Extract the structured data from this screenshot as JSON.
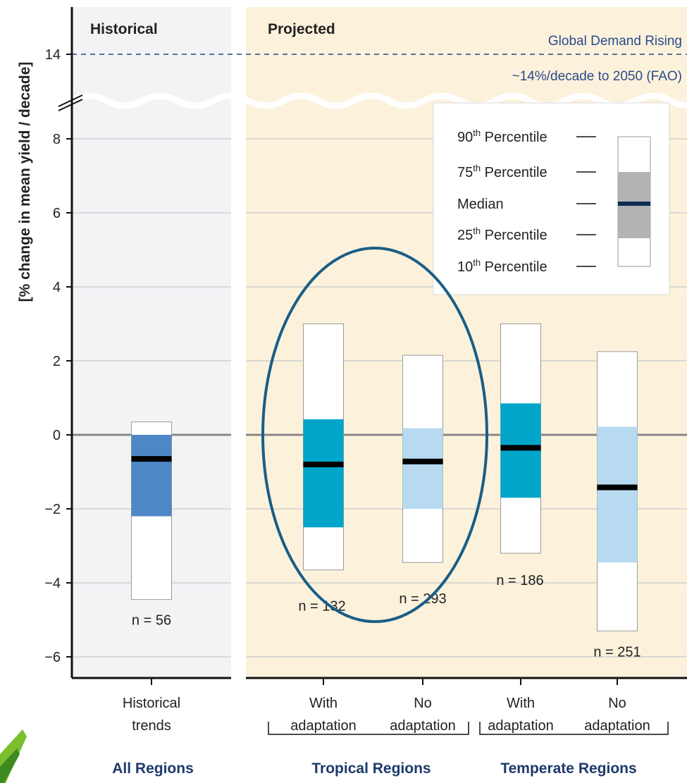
{
  "chart_data": {
    "type": "boxplot",
    "ylabel": "[% change in mean yield / decade]",
    "ylim": [
      -6.5,
      9.5
    ],
    "yticks": [
      -6,
      -4,
      -2,
      0,
      2,
      4,
      6,
      8
    ],
    "ytick_labels": [
      "−6",
      "−4",
      "−2",
      "0",
      "2",
      "4",
      "6",
      "8"
    ],
    "broken_axis_tick": {
      "value": 14,
      "label": "14"
    },
    "panels": [
      {
        "label": "Historical"
      },
      {
        "label": "Projected"
      }
    ],
    "reference_line": {
      "value": 14,
      "label_line1": "Global Demand Rising",
      "label_line2": "~14%/decade to 2050 (FAO)",
      "color": "#5a6f9a"
    },
    "boxes": [
      {
        "category": "Historical trends",
        "line1": "Historical",
        "line2": "trends",
        "group": "All Regions",
        "p10": -4.45,
        "p25": -2.2,
        "median": -0.65,
        "p75": 0,
        "p90": 0.35,
        "n": "n = 56",
        "color": "#4f87c6"
      },
      {
        "category": "With adaptation",
        "line1": "With",
        "line2": "adaptation",
        "group": "Tropical Regions",
        "p10": -3.65,
        "p25": -2.5,
        "median": -0.8,
        "p75": 0.42,
        "p90": 3.0,
        "n": "n = 132",
        "color": "#00a5c9"
      },
      {
        "category": "No adaptation",
        "line1": "No",
        "line2": "adaptation",
        "group": "Tropical Regions",
        "p10": -3.45,
        "p25": -2.0,
        "median": -0.72,
        "p75": 0.18,
        "p90": 2.15,
        "n": "n = 293",
        "color": "#b8daf0"
      },
      {
        "category": "With adaptation",
        "line1": "With",
        "line2": "adaptation",
        "group": "Temperate Regions",
        "p10": -3.2,
        "p25": -1.7,
        "median": -0.35,
        "p75": 0.85,
        "p90": 3.0,
        "n": "n = 186",
        "color": "#00a5c9"
      },
      {
        "category": "No adaptation",
        "line1": "No",
        "line2": "adaptation",
        "group": "Temperate Regions",
        "p10": -5.3,
        "p25": -3.45,
        "median": -1.42,
        "p75": 0.22,
        "p90": 2.25,
        "n": "n = 251",
        "color": "#b8daf0"
      }
    ],
    "groups": [
      "All Regions",
      "Tropical Regions",
      "Temperate Regions"
    ],
    "legend": {
      "placement": "top-right",
      "entries": [
        {
          "num": "90",
          "sup": "th",
          "text": "Percentile"
        },
        {
          "num": "75",
          "sup": "th",
          "text": "Percentile"
        },
        {
          "num": "",
          "sup": "",
          "text": "Median"
        },
        {
          "num": "25",
          "sup": "th",
          "text": "Percentile"
        },
        {
          "num": "10",
          "sup": "th",
          "text": "Percentile"
        }
      ]
    },
    "highlight": {
      "shape": "ellipse",
      "color": "#1a5e86",
      "encloses": "Tropical Regions"
    },
    "colors": {
      "historical_bg": "#f3f3f6",
      "projected_bg": "#fcf2dc",
      "median": "#000000",
      "legend_median": "#0f2d52",
      "legend_iqr": "#b3b3b3",
      "group_label": "#1d3a6b"
    }
  }
}
